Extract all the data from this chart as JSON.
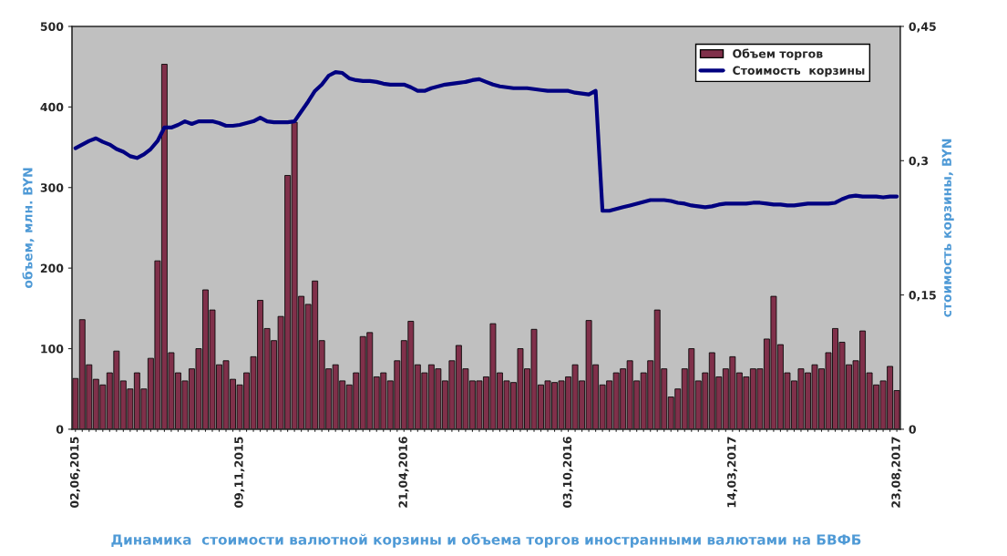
{
  "chart_data": {
    "type": "bar",
    "xlabel": "Динамика  стоимости валютной корзины и объема торгов иностранными валютами на БВФБ",
    "ylabel": "объем, млн. BYN",
    "y2label": "стоимость корзины, BYN",
    "categories": [
      "02,06,2015",
      null,
      null,
      null,
      null,
      null,
      null,
      null,
      null,
      null,
      null,
      null,
      null,
      null,
      null,
      null,
      null,
      null,
      null,
      null,
      null,
      null,
      null,
      null,
      "09,11,2015",
      null,
      null,
      null,
      null,
      null,
      null,
      null,
      null,
      null,
      null,
      null,
      null,
      null,
      null,
      null,
      null,
      null,
      null,
      null,
      null,
      null,
      null,
      null,
      "21,04,2016",
      null,
      null,
      null,
      null,
      null,
      null,
      null,
      null,
      null,
      null,
      null,
      null,
      null,
      null,
      null,
      null,
      null,
      null,
      null,
      null,
      null,
      null,
      null,
      "03,10,2016",
      null,
      null,
      null,
      null,
      null,
      null,
      null,
      null,
      null,
      null,
      null,
      null,
      null,
      null,
      null,
      null,
      null,
      null,
      null,
      null,
      null,
      null,
      null,
      "14,03,2017",
      null,
      null,
      null,
      null,
      null,
      null,
      null,
      null,
      null,
      null,
      null,
      null,
      null,
      null,
      null,
      null,
      null,
      null,
      null,
      null,
      null,
      null,
      null,
      "23,08,2017"
    ],
    "series": [
      {
        "name": "Объем торгов",
        "color": "#80304a",
        "values": [
          63,
          136,
          80,
          62,
          55,
          70,
          97,
          60,
          50,
          70,
          50,
          88,
          209,
          453,
          95,
          70,
          60,
          75,
          100,
          173,
          148,
          80,
          85,
          62,
          55,
          70,
          90,
          160,
          125,
          110,
          140,
          315,
          381,
          165,
          155,
          184,
          110,
          75,
          80,
          60,
          55,
          70,
          115,
          120,
          65,
          70,
          60,
          85,
          110,
          134,
          80,
          70,
          80,
          75,
          60,
          85,
          104,
          75,
          60,
          60,
          65,
          131,
          70,
          60,
          58,
          100,
          75,
          124,
          55,
          60,
          58,
          60,
          65,
          80,
          60,
          135,
          80,
          55,
          60,
          70,
          75,
          85,
          60,
          70,
          85,
          148,
          75,
          40,
          50,
          75,
          100,
          60,
          70,
          95,
          65,
          75,
          90,
          70,
          65,
          75,
          75,
          112,
          165,
          105,
          70,
          60,
          75,
          70,
          80,
          75,
          95,
          125,
          108,
          80,
          85,
          122,
          70,
          55,
          60,
          78,
          48
        ]
      },
      {
        "name": "Стоимость  корзины",
        "type": "line",
        "axis": "y2",
        "color": "#000080",
        "values": [
          0.314,
          0.318,
          0.322,
          0.325,
          0.321,
          0.318,
          0.313,
          0.31,
          0.305,
          0.303,
          0.307,
          0.313,
          0.322,
          0.337,
          0.337,
          0.34,
          0.344,
          0.341,
          0.344,
          0.344,
          0.344,
          0.342,
          0.339,
          0.339,
          0.34,
          0.342,
          0.344,
          0.348,
          0.344,
          0.343,
          0.343,
          0.343,
          0.344,
          0.355,
          0.366,
          0.378,
          0.385,
          0.395,
          0.399,
          0.398,
          0.392,
          0.39,
          0.389,
          0.389,
          0.388,
          0.386,
          0.385,
          0.385,
          0.385,
          0.382,
          0.378,
          0.378,
          0.381,
          0.383,
          0.385,
          0.386,
          0.387,
          0.388,
          0.39,
          0.391,
          0.388,
          0.385,
          0.383,
          0.382,
          0.381,
          0.381,
          0.381,
          0.38,
          0.379,
          0.378,
          0.378,
          0.378,
          0.378,
          0.376,
          0.375,
          0.374,
          0.378,
          0.244,
          0.244,
          0.246,
          0.248,
          0.25,
          0.252,
          0.254,
          0.256,
          0.256,
          0.256,
          0.255,
          0.253,
          0.252,
          0.25,
          0.249,
          0.248,
          0.249,
          0.251,
          0.252,
          0.252,
          0.252,
          0.252,
          0.253,
          0.253,
          0.252,
          0.251,
          0.251,
          0.25,
          0.25,
          0.251,
          0.252,
          0.252,
          0.252,
          0.252,
          0.253,
          0.257,
          0.26,
          0.261,
          0.26,
          0.26,
          0.26,
          0.259,
          0.26,
          0.26
        ]
      }
    ],
    "ylim": [
      0,
      500
    ],
    "yticks": [
      0,
      100,
      200,
      300,
      400,
      500
    ],
    "y2lim": [
      0,
      0.45
    ],
    "y2ticks": [
      0,
      {
        "value": 0.15,
        "label": "0,15"
      },
      {
        "value": 0.3,
        "label": "0,3"
      },
      {
        "value": 0.45,
        "label": "0,45"
      }
    ],
    "legend": "top right",
    "grid": false,
    "line_style": "solid",
    "marker": "none"
  }
}
